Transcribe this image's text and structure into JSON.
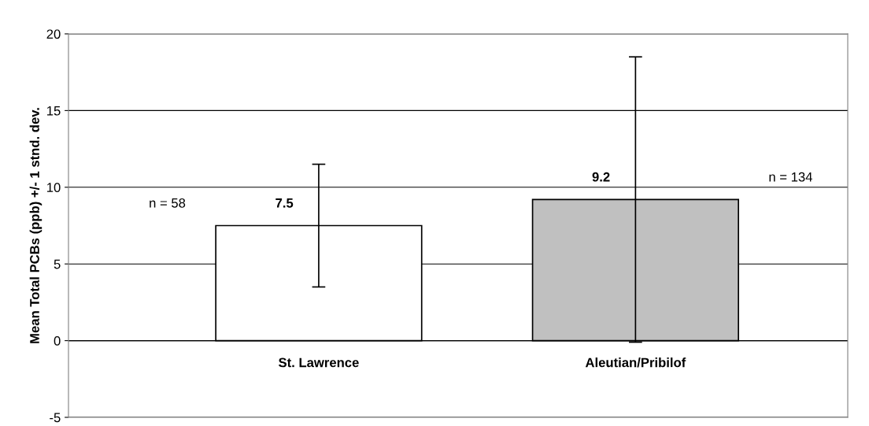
{
  "chart_data": {
    "type": "bar",
    "ylabel": "Mean Total PCBs (ppb) +/- 1 stnd. dev.",
    "categories": [
      "St. Lawrence",
      "Aleutian/Pribilof"
    ],
    "values": [
      7.5,
      9.2
    ],
    "colors": [
      "#ffffff",
      "#c0c0c0"
    ],
    "errors": [
      4.0,
      9.3
    ],
    "data_labels": true,
    "annotations": [
      "n = 58",
      "n = 134"
    ],
    "ylim": [
      -5,
      20
    ],
    "yticks": [
      -5,
      0,
      5,
      10,
      15,
      20
    ],
    "grid": "y"
  }
}
